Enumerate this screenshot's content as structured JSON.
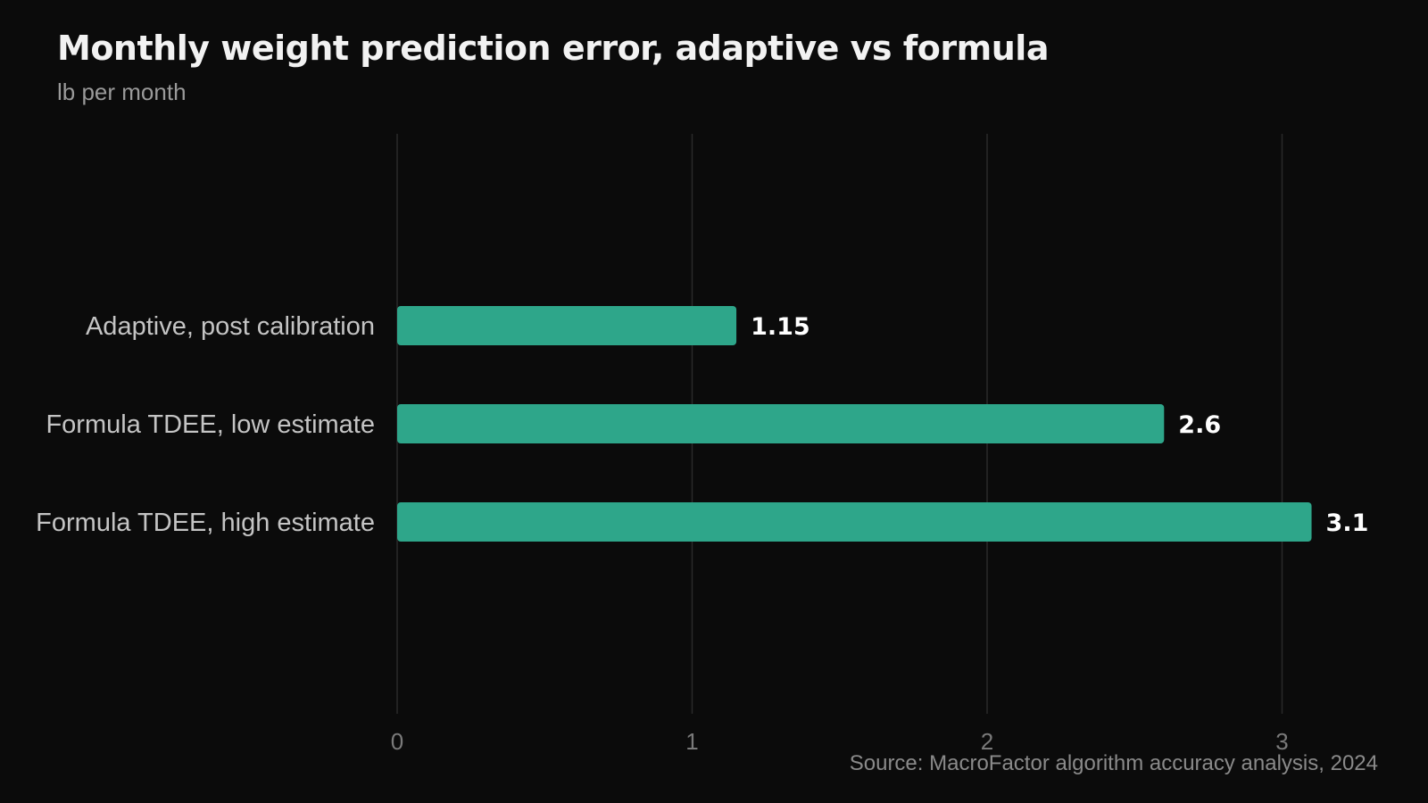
{
  "title": "Monthly weight prediction error, adaptive vs formula",
  "subtitle": "lb per month",
  "source": "Source: MacroFactor algorithm accuracy analysis, 2024",
  "colors": {
    "background": "#0b0b0b",
    "bar": "#2ea68a",
    "grid": "#2a2a2a",
    "category_label": "#c4c4c4",
    "value_label": "#ffffff",
    "tick_label": "#7a7a7a"
  },
  "chart_data": {
    "type": "bar",
    "orientation": "horizontal",
    "categories": [
      "Adaptive, post calibration",
      "Formula TDEE, low estimate",
      "Formula TDEE, high estimate"
    ],
    "values": [
      1.15,
      2.6,
      3.1
    ],
    "value_labels": [
      "1.15",
      "2.6",
      "3.1"
    ],
    "title": "Monthly weight prediction error, adaptive vs formula",
    "xlabel": "",
    "ylabel": "",
    "xlim": [
      0,
      3.15
    ],
    "xticks": [
      0,
      1,
      2,
      3
    ],
    "grid": "vertical"
  }
}
